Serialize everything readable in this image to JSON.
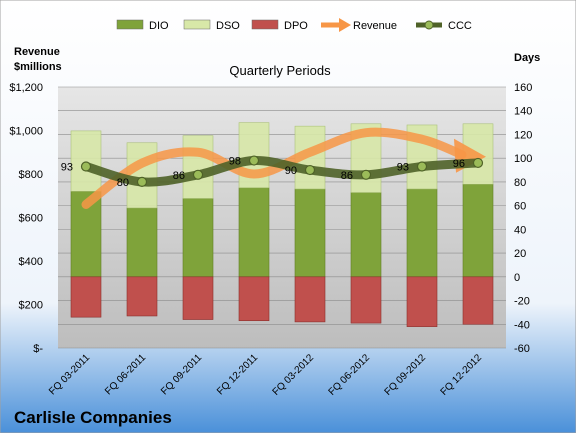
{
  "company": "Carlisle Companies",
  "chart_data": {
    "type": "bar",
    "title": "Quarterly Periods",
    "left_axis_label_line1": "Revenue",
    "left_axis_label_line2": "$millions",
    "right_axis_label": "Days",
    "categories": [
      "FQ 03-2011",
      "FQ 06-2011",
      "FQ 09-2011",
      "FQ 12-2011",
      "FQ 03-2012",
      "FQ 06-2012",
      "FQ 09-2012",
      "FQ 12-2012"
    ],
    "left_ticks": [
      "$-",
      "$200",
      "$400",
      "$600",
      "$800",
      "$1,000",
      "$1,200"
    ],
    "right_ticks": [
      "-60",
      "-40",
      "-20",
      "0",
      "20",
      "40",
      "60",
      "80",
      "100",
      "120",
      "140",
      "160"
    ],
    "left_ylim": [
      0,
      1200
    ],
    "right_ylim": [
      -60,
      160
    ],
    "legend_position": "top",
    "series": [
      {
        "name": "DIO",
        "axis": "right",
        "values": [
          72,
          58,
          66,
          75,
          74,
          71,
          74,
          78
        ],
        "color": "#7fa33a"
      },
      {
        "name": "DSO",
        "axis": "right",
        "values": [
          51,
          55,
          53,
          55,
          53,
          58,
          54,
          51
        ],
        "color": "#d8e8a8"
      },
      {
        "name": "DPO",
        "axis": "right",
        "values": [
          -34,
          -33,
          -36,
          -37,
          -38,
          -39,
          -42,
          -40
        ],
        "color": "#c0504d"
      },
      {
        "name": "Revenue",
        "axis": "left",
        "values": [
          660,
          850,
          900,
          800,
          900,
          990,
          960,
          870
        ],
        "color": "#f79646"
      },
      {
        "name": "CCC",
        "axis": "right",
        "values": [
          93,
          80,
          86,
          98,
          90,
          86,
          93,
          96
        ],
        "labels": [
          "93",
          "80",
          "86",
          "98",
          "90",
          "86",
          "93",
          "96"
        ],
        "color": "#4f6228"
      }
    ]
  }
}
